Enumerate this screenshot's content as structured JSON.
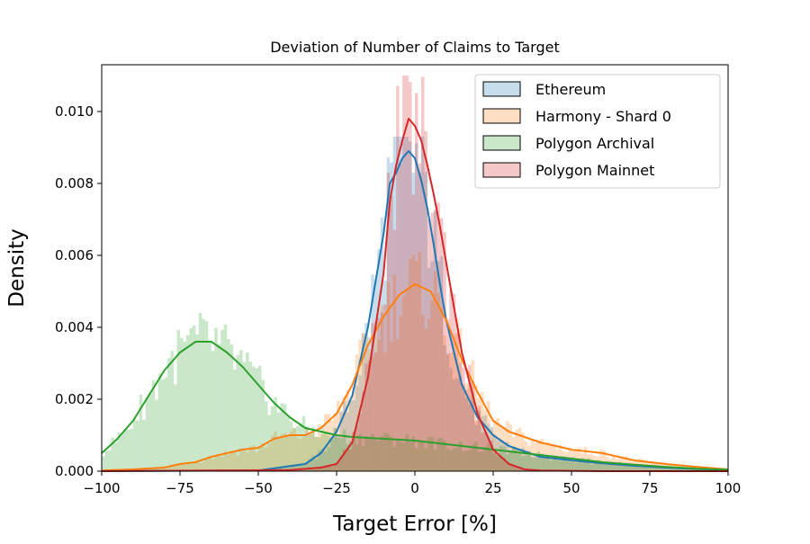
{
  "chart_data": {
    "type": "histogram",
    "title": "Deviation of Number of Claims to Target",
    "xlabel": "Target Error [%]",
    "ylabel": "Density",
    "xlim": [
      -100,
      100
    ],
    "ylim": [
      0,
      0.0113
    ],
    "xticks": [
      -100,
      -75,
      -50,
      -25,
      0,
      25,
      50,
      75,
      100
    ],
    "xtick_labels": [
      "−100",
      "−75",
      "−50",
      "−25",
      "0",
      "25",
      "50",
      "75",
      "100"
    ],
    "yticks": [
      0.0,
      0.002,
      0.004,
      0.006,
      0.008,
      0.01
    ],
    "ytick_labels": [
      "0.000",
      "0.002",
      "0.004",
      "0.006",
      "0.008",
      "0.010"
    ],
    "grid": false,
    "legend_position": "upper right",
    "series": [
      {
        "name": "Ethereum",
        "color": "#1f77b4",
        "kde": {
          "x": [
            -100,
            -50,
            -35,
            -30,
            -25,
            -20,
            -15,
            -10,
            -8,
            -6,
            -4,
            -2,
            0,
            2,
            4,
            6,
            8,
            10,
            15,
            20,
            25,
            30,
            40,
            50,
            60,
            70,
            80,
            90,
            100
          ],
          "y": [
            0.0,
            2e-05,
            0.0002,
            0.0005,
            0.0011,
            0.0021,
            0.004,
            0.0066,
            0.008,
            0.0083,
            0.0087,
            0.0089,
            0.0087,
            0.0081,
            0.0073,
            0.0063,
            0.0052,
            0.0042,
            0.0024,
            0.0015,
            0.001,
            0.0007,
            0.0004,
            0.0003,
            0.00022,
            0.00015,
            0.0001,
            6e-05,
            4e-05
          ]
        },
        "hist_peak": 0.0093
      },
      {
        "name": "Harmony - Shard 0",
        "color": "#ff7f0e",
        "kde": {
          "x": [
            -100,
            -90,
            -80,
            -75,
            -70,
            -65,
            -60,
            -55,
            -50,
            -45,
            -40,
            -35,
            -30,
            -25,
            -20,
            -15,
            -10,
            -5,
            0,
            5,
            10,
            15,
            20,
            25,
            30,
            40,
            50,
            60,
            70,
            80,
            90,
            100
          ],
          "y": [
            2e-05,
            5e-05,
            0.0001,
            0.0002,
            0.00025,
            0.0004,
            0.0005,
            0.0006,
            0.00065,
            0.0009,
            0.001,
            0.001,
            0.0012,
            0.0016,
            0.0024,
            0.0035,
            0.0043,
            0.0049,
            0.0052,
            0.005,
            0.0042,
            0.0031,
            0.0022,
            0.0014,
            0.0011,
            0.0008,
            0.0006,
            0.0005,
            0.0003,
            0.0002,
            0.00012,
            5e-05
          ]
        },
        "hist_peak": 0.0061
      },
      {
        "name": "Polygon Archival",
        "color": "#2ca02c",
        "kde": {
          "x": [
            -100,
            -95,
            -90,
            -85,
            -80,
            -75,
            -70,
            -65,
            -60,
            -55,
            -50,
            -45,
            -40,
            -35,
            -30,
            -25,
            -20,
            -10,
            0,
            10,
            20,
            30,
            40,
            50,
            60,
            70,
            80,
            90,
            100
          ],
          "y": [
            0.0005,
            0.0009,
            0.0014,
            0.0021,
            0.0028,
            0.0033,
            0.0036,
            0.0036,
            0.0033,
            0.0029,
            0.0024,
            0.0019,
            0.0015,
            0.0012,
            0.0011,
            0.001,
            0.00095,
            0.0009,
            0.00085,
            0.00075,
            0.00065,
            0.00055,
            0.00045,
            0.00035,
            0.00025,
            0.00018,
            0.00012,
            7e-05,
            4e-05
          ]
        },
        "hist_peak": 0.0044
      },
      {
        "name": "Polygon Mainnet",
        "color": "#d62728",
        "kde": {
          "x": [
            -100,
            -40,
            -30,
            -25,
            -20,
            -15,
            -10,
            -8,
            -6,
            -4,
            -2,
            0,
            2,
            4,
            6,
            8,
            10,
            12,
            15,
            20,
            25,
            30,
            35,
            40,
            60,
            100
          ],
          "y": [
            0.0,
            3e-05,
            0.0001,
            0.0002,
            0.0008,
            0.0026,
            0.0055,
            0.0075,
            0.0085,
            0.0092,
            0.0098,
            0.0096,
            0.0092,
            0.0085,
            0.0077,
            0.0068,
            0.0058,
            0.0048,
            0.0033,
            0.0016,
            0.0006,
            0.0002,
            5e-05,
            2e-05,
            0.0,
            0.0
          ]
        },
        "hist_peak": 0.011
      }
    ]
  }
}
